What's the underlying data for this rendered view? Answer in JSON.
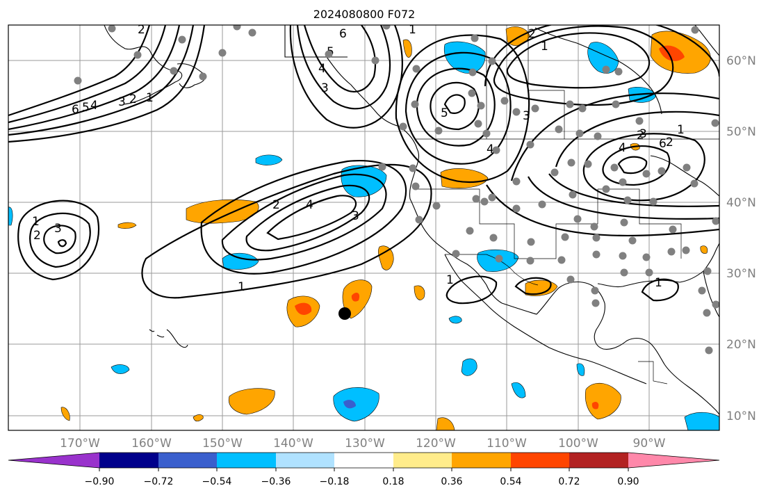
{
  "title": "2024080800 F072",
  "map": {
    "lon_ticks": [
      "170°W",
      "160°W",
      "150°W",
      "140°W",
      "130°W",
      "120°W",
      "110°W",
      "100°W",
      "90°W"
    ],
    "lat_ticks": [
      "60°N",
      "50°N",
      "40°N",
      "30°N",
      "20°N",
      "10°N"
    ],
    "contour_labels": [
      "6",
      "5",
      "4",
      "3",
      "2",
      "1",
      "6",
      "5",
      "4",
      "3",
      "2",
      "1",
      "1",
      "2",
      "3",
      "4",
      "5",
      "6",
      "2",
      "4",
      "3",
      "1",
      "1",
      "2",
      "3",
      "1",
      "2",
      "3",
      "4",
      "3",
      "4",
      "1",
      "1",
      "2",
      "1",
      "2",
      "3"
    ],
    "colors": {
      "orange": "#ffa500",
      "red_orange": "#ff4500",
      "deep_sky_blue": "#00bfff",
      "royal_blue": "#3a5fcd",
      "station_marker": "#808080",
      "highlight_marker": "#000000"
    }
  },
  "colorbar": {
    "ticks": [
      "−0.90",
      "−0.72",
      "−0.54",
      "−0.36",
      "−0.18",
      "0.18",
      "0.36",
      "0.54",
      "0.72",
      "0.90"
    ],
    "colors": [
      "#9932cc",
      "#00008b",
      "#3a5fcd",
      "#00bfff",
      "#b0e2ff",
      "#ffffff",
      "#ffec8b",
      "#ffa500",
      "#ff4500",
      "#b22222",
      "#ff88aa"
    ]
  }
}
